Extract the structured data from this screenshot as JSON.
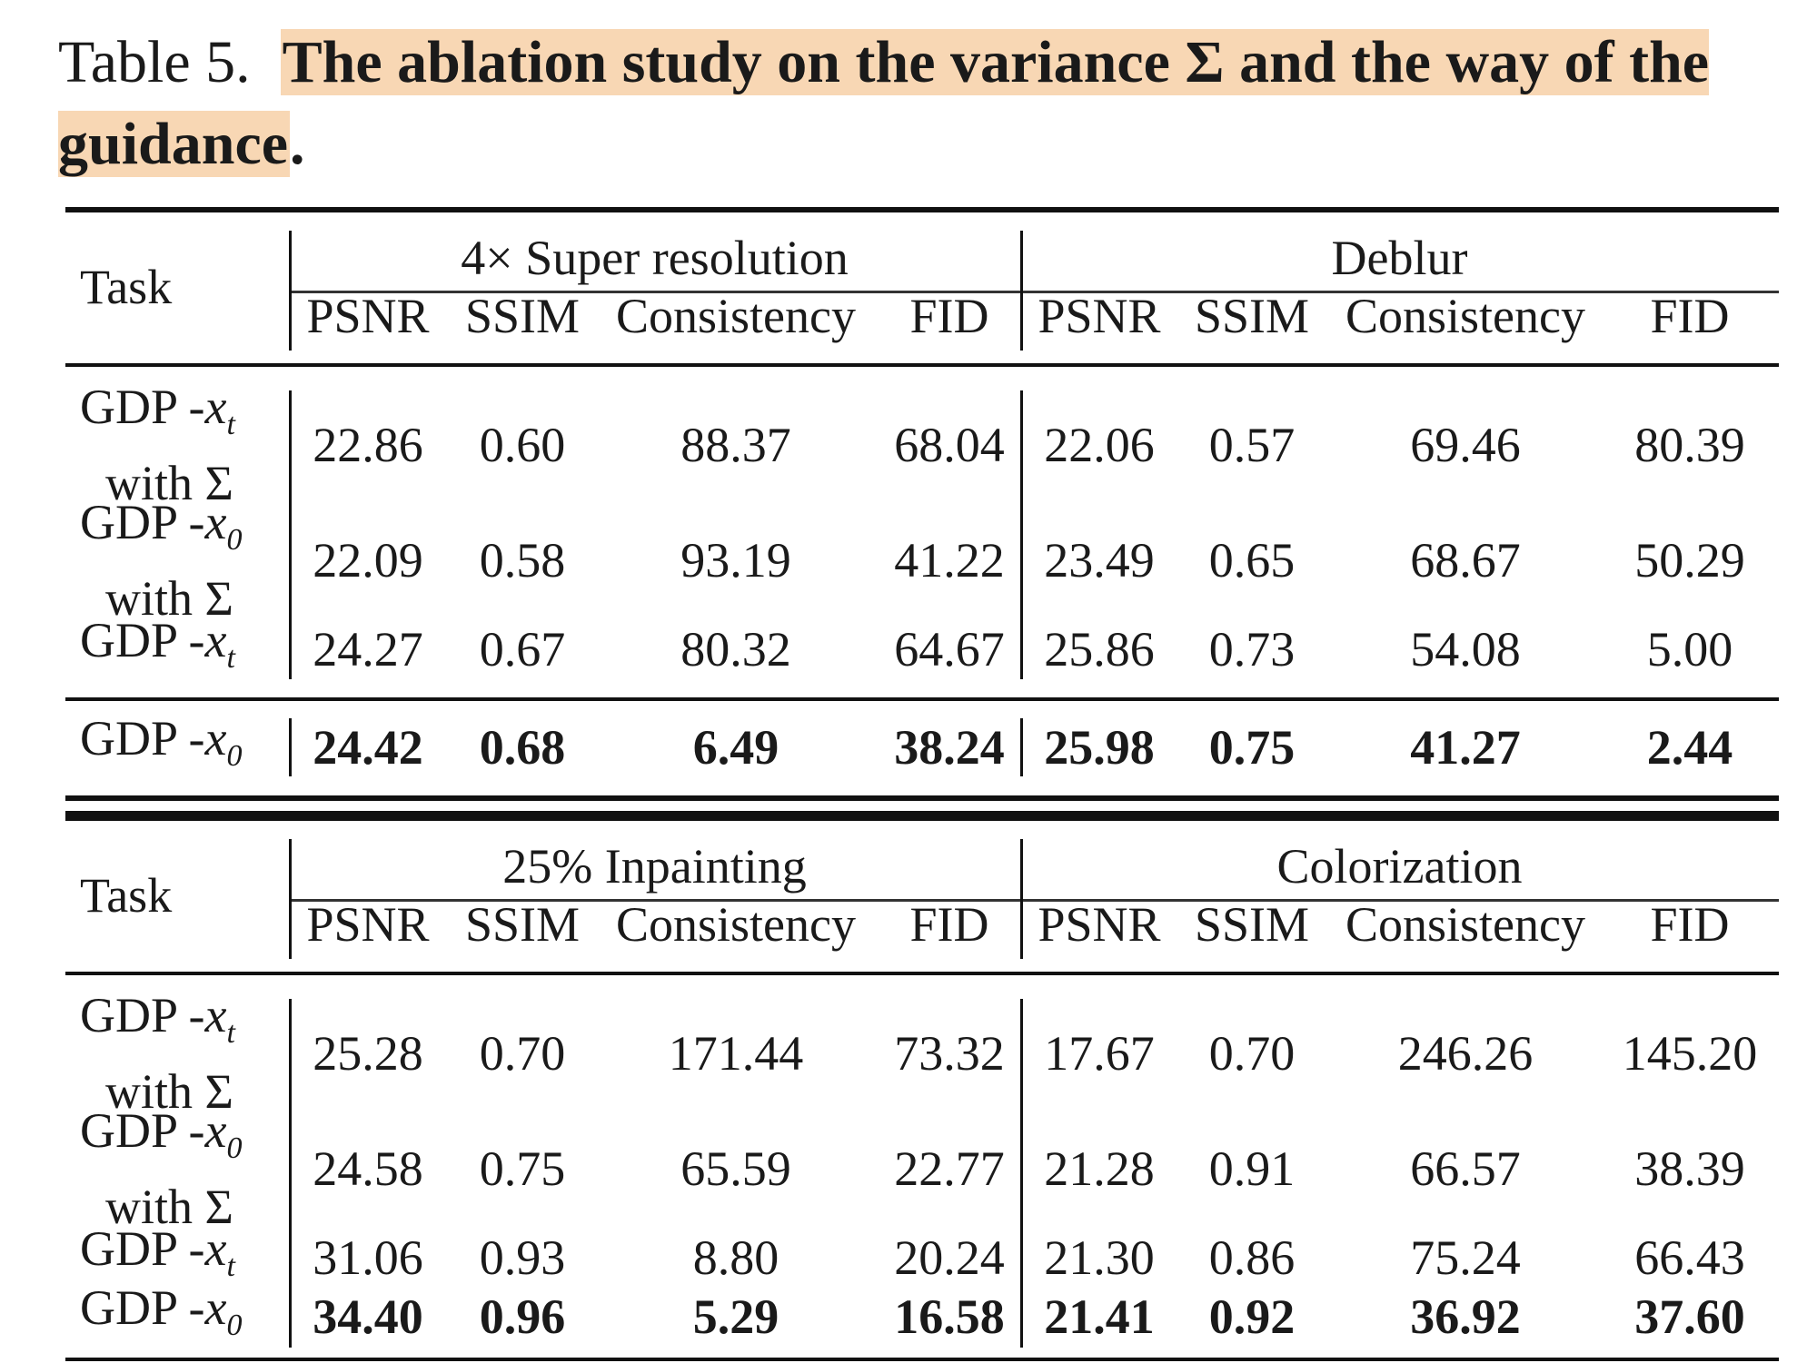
{
  "caption": {
    "prefix": "Table 5.",
    "highlight": "The ablation study on the variance Σ and the way of the guidance",
    "suffix": "."
  },
  "table": {
    "task_header": "Task",
    "metrics": [
      "PSNR",
      "SSIM",
      "Consistency",
      "FID"
    ],
    "blocks": [
      {
        "groups": [
          "4× Super resolution",
          "Deblur"
        ],
        "rows": [
          {
            "label_main": "GDP -",
            "label_var": "x",
            "label_sub": "t",
            "label_line2": "with Σ",
            "bold": false,
            "values": [
              "22.86",
              "0.60",
              "88.37",
              "68.04",
              "22.06",
              "0.57",
              "69.46",
              "80.39"
            ]
          },
          {
            "label_main": "GDP -",
            "label_var": "x",
            "label_sub": "0",
            "label_line2": "with Σ",
            "bold": false,
            "values": [
              "22.09",
              "0.58",
              "93.19",
              "41.22",
              "23.49",
              "0.65",
              "68.67",
              "50.29"
            ]
          },
          {
            "label_main": "GDP -",
            "label_var": "x",
            "label_sub": "t",
            "label_line2": "",
            "bold": false,
            "values": [
              "24.27",
              "0.67",
              "80.32",
              "64.67",
              "25.86",
              "0.73",
              "54.08",
              "5.00"
            ]
          },
          {
            "label_main": "GDP -",
            "label_var": "x",
            "label_sub": "0",
            "label_line2": "",
            "bold": true,
            "values": [
              "24.42",
              "0.68",
              "6.49",
              "38.24",
              "25.98",
              "0.75",
              "41.27",
              "2.44"
            ]
          }
        ]
      },
      {
        "groups": [
          "25% Inpainting",
          "Colorization"
        ],
        "rows": [
          {
            "label_main": "GDP -",
            "label_var": "x",
            "label_sub": "t",
            "label_line2": "with Σ",
            "bold": false,
            "values": [
              "25.28",
              "0.70",
              "171.44",
              "73.32",
              "17.67",
              "0.70",
              "246.26",
              "145.20"
            ]
          },
          {
            "label_main": "GDP -",
            "label_var": "x",
            "label_sub": "0",
            "label_line2": "with Σ",
            "bold": false,
            "values": [
              "24.58",
              "0.75",
              "65.59",
              "22.77",
              "21.28",
              "0.91",
              "66.57",
              "38.39"
            ]
          },
          {
            "label_main": "GDP -",
            "label_var": "x",
            "label_sub": "t",
            "label_line2": "",
            "bold": false,
            "values": [
              "31.06",
              "0.93",
              "8.80",
              "20.24",
              "21.30",
              "0.86",
              "75.24",
              "66.43"
            ]
          },
          {
            "label_main": "GDP -",
            "label_var": "x",
            "label_sub": "0",
            "label_line2": "",
            "bold": true,
            "values": [
              "34.40",
              "0.96",
              "5.29",
              "16.58",
              "21.41",
              "0.92",
              "36.92",
              "37.60"
            ]
          }
        ]
      }
    ]
  }
}
